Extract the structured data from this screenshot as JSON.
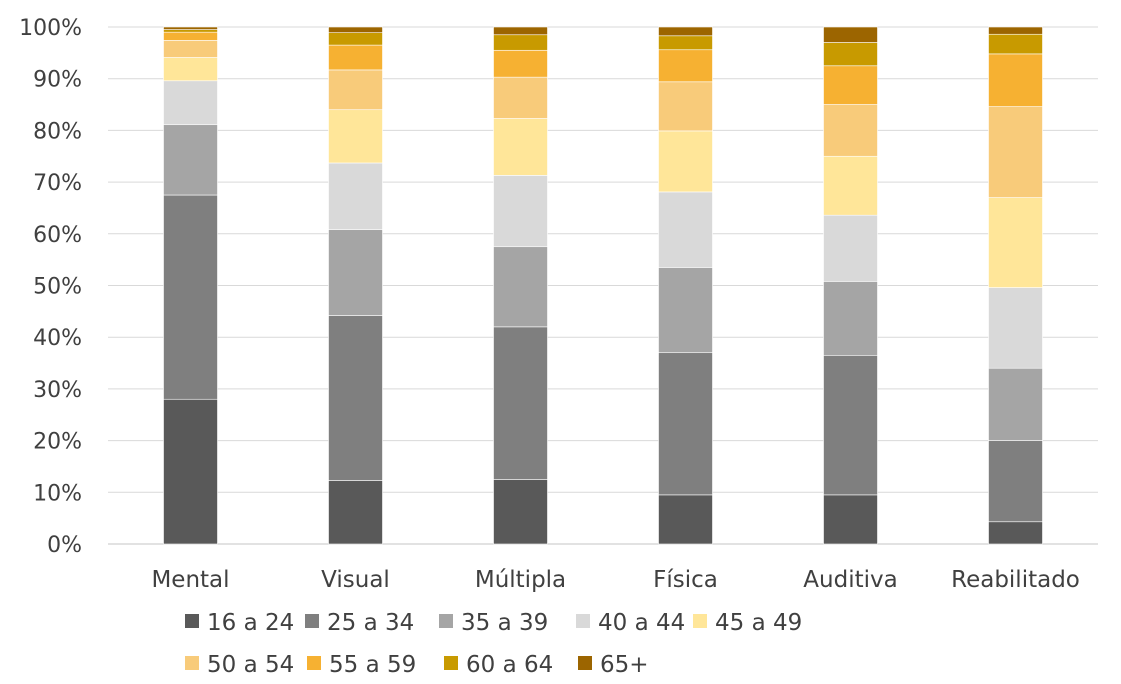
{
  "chart_data": {
    "type": "bar",
    "stacked": true,
    "percent": true,
    "title": "",
    "xlabel": "",
    "ylabel": "",
    "ylim": [
      0,
      100
    ],
    "yticks": [
      "0%",
      "10%",
      "20%",
      "30%",
      "40%",
      "50%",
      "60%",
      "70%",
      "80%",
      "90%",
      "100%"
    ],
    "categories": [
      "Mental",
      "Visual",
      "Múltipla",
      "Física",
      "Auditiva",
      "Reabilitado"
    ],
    "legend_position": "bottom",
    "grid": true,
    "series": [
      {
        "name": "16 a 24",
        "color": "#595959",
        "values": [
          28,
          12.3,
          12.5,
          9.5,
          9.5,
          4.3
        ]
      },
      {
        "name": "25 a 34",
        "color": "#7f7f7f",
        "values": [
          39.5,
          31.9,
          29.5,
          27.5,
          27,
          15.7
        ]
      },
      {
        "name": "35 a 39",
        "color": "#a5a5a5",
        "values": [
          13.6,
          16.6,
          15.5,
          16.5,
          14.3,
          14
        ]
      },
      {
        "name": "40 a 44",
        "color": "#d9d9d9",
        "values": [
          8.5,
          12.9,
          13.8,
          14.6,
          12.8,
          15.6
        ]
      },
      {
        "name": "45 a 49",
        "color": "#ffe699",
        "values": [
          4.5,
          10.3,
          11,
          11.8,
          11.4,
          17.4
        ]
      },
      {
        "name": "50 a 54",
        "color": "#f8cb7a",
        "values": [
          3.3,
          7.7,
          8,
          9.5,
          10,
          17.6
        ]
      },
      {
        "name": "55 a 59",
        "color": "#f6b132",
        "values": [
          1.6,
          4.8,
          5.2,
          6.2,
          7.5,
          10.2
        ]
      },
      {
        "name": "60 a 64",
        "color": "#c89a00",
        "values": [
          0.5,
          2.4,
          3,
          2.7,
          4.5,
          3.8
        ]
      },
      {
        "name": "65+",
        "color": "#9c6500",
        "values": [
          0.5,
          1.1,
          1.5,
          1.7,
          3,
          1.4
        ]
      }
    ]
  }
}
